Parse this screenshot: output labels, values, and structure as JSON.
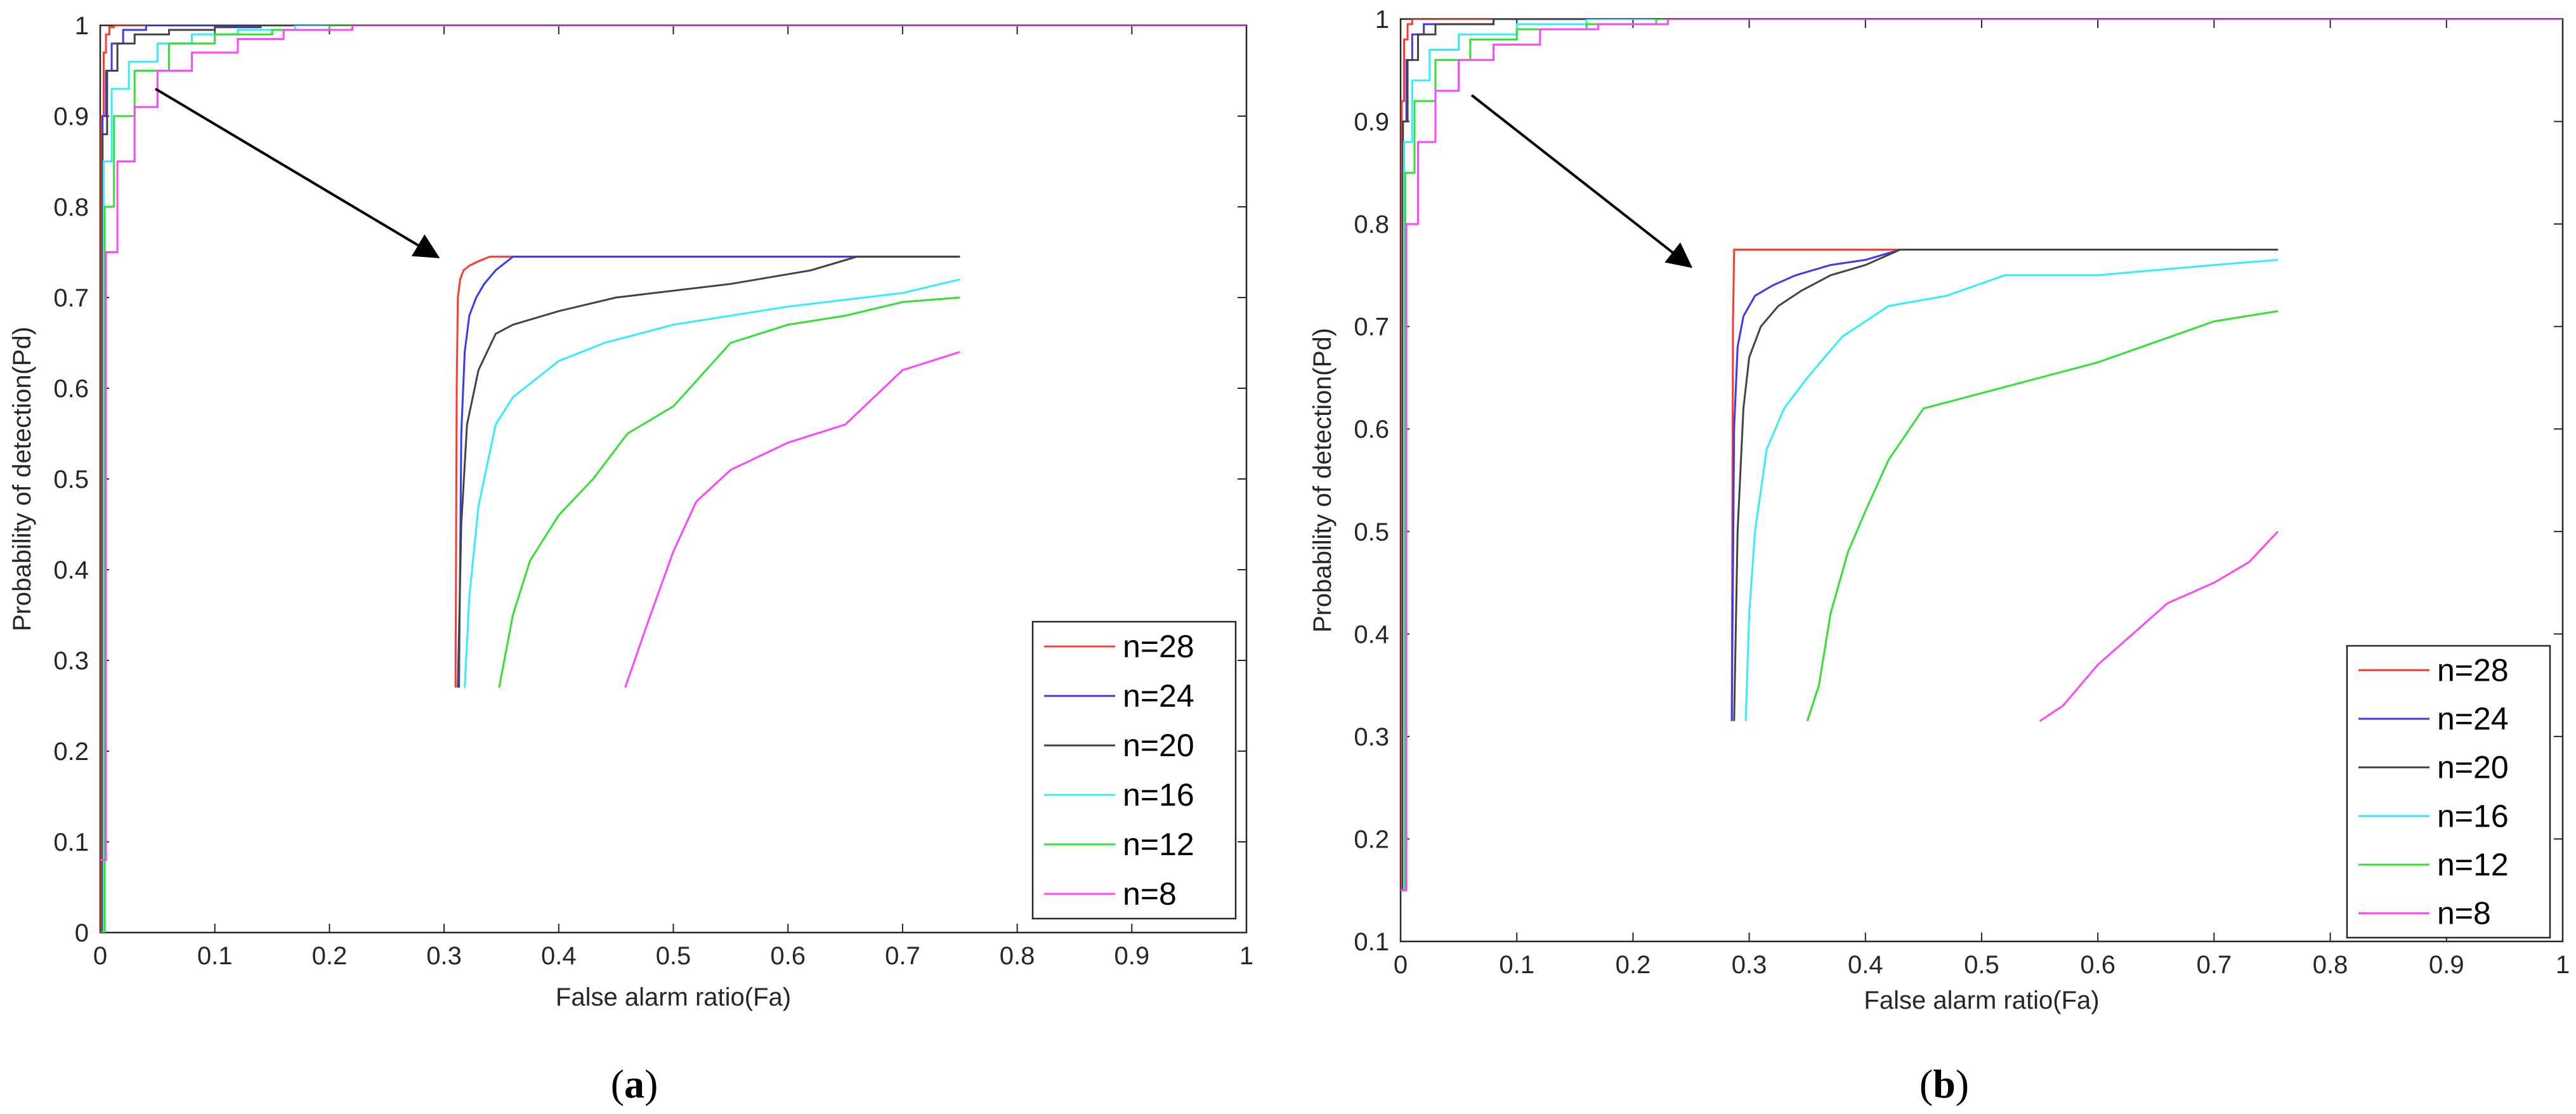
{
  "figure": {
    "colors": {
      "n=28": "#ff3b30",
      "n=24": "#3a3af0",
      "n=20": "#444444",
      "n=16": "#33ecff",
      "n=12": "#33e033",
      "n=8": "#ff44ff"
    }
  },
  "chart_data": [
    {
      "type": "line",
      "panel_label": "a",
      "xlabel": "False alarm ratio(Fa)",
      "ylabel": "Probability of detection(Pd)",
      "xlim": [
        0,
        1
      ],
      "ylim": [
        0,
        1
      ],
      "xticks": [
        "0",
        "0.1",
        "0.2",
        "0.3",
        "0.4",
        "0.5",
        "0.6",
        "0.7",
        "0.8",
        "0.9",
        "1"
      ],
      "yticks": [
        "0",
        "0.1",
        "0.2",
        "0.3",
        "0.4",
        "0.5",
        "0.6",
        "0.7",
        "0.8",
        "0.9",
        "1"
      ],
      "legend_position": "bottom-right",
      "series": [
        {
          "name": "n=28",
          "x": [
            0,
            0.001,
            0.003,
            0.005,
            0.008,
            0.012,
            1
          ],
          "y": [
            0,
            0.9,
            0.97,
            0.99,
            0.998,
            1,
            1
          ]
        },
        {
          "name": "n=24",
          "x": [
            0,
            0.002,
            0.005,
            0.01,
            0.02,
            0.04,
            1
          ],
          "y": [
            0,
            0.9,
            0.95,
            0.98,
            0.995,
            1,
            1
          ]
        },
        {
          "name": "n=20",
          "x": [
            0,
            0.002,
            0.006,
            0.015,
            0.03,
            0.06,
            0.1,
            0.14,
            1
          ],
          "y": [
            0,
            0.88,
            0.95,
            0.98,
            0.99,
            0.995,
            0.998,
            1,
            1
          ]
        },
        {
          "name": "n=16",
          "x": [
            0,
            0.003,
            0.01,
            0.025,
            0.05,
            0.08,
            0.12,
            0.17,
            1
          ],
          "y": [
            0,
            0.85,
            0.93,
            0.96,
            0.98,
            0.99,
            0.995,
            1,
            1
          ]
        },
        {
          "name": "n=12",
          "x": [
            0,
            0.004,
            0.012,
            0.03,
            0.06,
            0.1,
            0.15,
            0.2,
            1
          ],
          "y": [
            0,
            0.8,
            0.9,
            0.95,
            0.98,
            0.99,
            0.995,
            1,
            1
          ]
        },
        {
          "name": "n=8",
          "x": [
            0,
            0.005,
            0.015,
            0.03,
            0.05,
            0.08,
            0.12,
            0.16,
            0.22,
            1
          ],
          "y": [
            0.08,
            0.75,
            0.85,
            0.91,
            0.95,
            0.97,
            0.985,
            0.995,
            1,
            1
          ]
        }
      ],
      "inset": {
        "description": "zoomed view of the top-left corner",
        "frame": {
          "x": [
            0.3,
            0.75
          ],
          "y": [
            0.27,
            0.745
          ]
        },
        "series": [
          {
            "name": "n=28",
            "x": [
              0.31,
              0.311,
              0.312,
              0.314,
              0.317,
              0.322,
              0.33,
              0.34,
              0.75
            ],
            "y": [
              0.27,
              0.6,
              0.7,
              0.72,
              0.73,
              0.735,
              0.74,
              0.745,
              0.745
            ]
          },
          {
            "name": "n=24",
            "x": [
              0.313,
              0.315,
              0.318,
              0.322,
              0.328,
              0.335,
              0.345,
              0.36,
              0.75
            ],
            "y": [
              0.27,
              0.55,
              0.64,
              0.68,
              0.7,
              0.715,
              0.73,
              0.745,
              0.745
            ]
          },
          {
            "name": "n=20",
            "x": [
              0.312,
              0.315,
              0.32,
              0.33,
              0.345,
              0.36,
              0.4,
              0.45,
              0.55,
              0.62,
              0.66,
              0.75
            ],
            "y": [
              0.27,
              0.45,
              0.56,
              0.62,
              0.66,
              0.67,
              0.685,
              0.7,
              0.715,
              0.73,
              0.745,
              0.745
            ]
          },
          {
            "name": "n=16",
            "x": [
              0.318,
              0.322,
              0.33,
              0.345,
              0.36,
              0.38,
              0.4,
              0.44,
              0.5,
              0.6,
              0.7,
              0.75
            ],
            "y": [
              0.27,
              0.37,
              0.47,
              0.56,
              0.59,
              0.61,
              0.63,
              0.65,
              0.67,
              0.69,
              0.705,
              0.72
            ]
          },
          {
            "name": "n=12",
            "x": [
              0.348,
              0.36,
              0.375,
              0.4,
              0.43,
              0.46,
              0.5,
              0.55,
              0.6,
              0.65,
              0.7,
              0.75
            ],
            "y": [
              0.27,
              0.35,
              0.41,
              0.46,
              0.5,
              0.55,
              0.58,
              0.65,
              0.67,
              0.68,
              0.695,
              0.7
            ]
          },
          {
            "name": "n=8",
            "x": [
              0.458,
              0.48,
              0.5,
              0.52,
              0.55,
              0.6,
              0.65,
              0.7,
              0.75
            ],
            "y": [
              0.27,
              0.35,
              0.42,
              0.475,
              0.51,
              0.54,
              0.56,
              0.62,
              0.64
            ]
          }
        ]
      }
    },
    {
      "type": "line",
      "panel_label": "b",
      "xlabel": "False alarm ratio(Fa)",
      "ylabel": "Probability of detection(Pd)",
      "xlim": [
        0,
        1
      ],
      "ylim": [
        0.1,
        1
      ],
      "xticks": [
        "0",
        "0.1",
        "0.2",
        "0.3",
        "0.4",
        "0.5",
        "0.6",
        "0.7",
        "0.8",
        "0.9",
        "1"
      ],
      "yticks": [
        "0.1",
        "0.2",
        "0.3",
        "0.4",
        "0.5",
        "0.6",
        "0.7",
        "0.8",
        "0.9",
        "1"
      ],
      "legend_position": "bottom-right",
      "series": [
        {
          "name": "n=28",
          "x": [
            0,
            0.001,
            0.003,
            0.006,
            0.01,
            1
          ],
          "y": [
            0.15,
            0.92,
            0.98,
            0.995,
            1,
            1
          ]
        },
        {
          "name": "n=24",
          "x": [
            0,
            0.002,
            0.005,
            0.01,
            0.02,
            0.08,
            1
          ],
          "y": [
            0.15,
            0.9,
            0.96,
            0.985,
            0.995,
            1,
            1
          ]
        },
        {
          "name": "n=20",
          "x": [
            0,
            0.002,
            0.006,
            0.015,
            0.03,
            0.08,
            1
          ],
          "y": [
            0.15,
            0.9,
            0.96,
            0.985,
            0.995,
            1,
            1
          ]
        },
        {
          "name": "n=16",
          "x": [
            0,
            0.003,
            0.01,
            0.025,
            0.05,
            0.1,
            0.16,
            1
          ],
          "y": [
            0.15,
            0.88,
            0.94,
            0.97,
            0.985,
            0.995,
            1,
            1
          ]
        },
        {
          "name": "n=12",
          "x": [
            0,
            0.004,
            0.012,
            0.03,
            0.06,
            0.1,
            0.16,
            0.22,
            1
          ],
          "y": [
            0.15,
            0.85,
            0.92,
            0.96,
            0.98,
            0.99,
            0.995,
            1,
            1
          ]
        },
        {
          "name": "n=8",
          "x": [
            0,
            0.005,
            0.015,
            0.03,
            0.05,
            0.08,
            0.12,
            0.17,
            0.23,
            1
          ],
          "y": [
            0.15,
            0.8,
            0.88,
            0.93,
            0.96,
            0.975,
            0.99,
            0.995,
            1,
            1
          ]
        }
      ],
      "inset": {
        "description": "zoomed view of the top-left corner",
        "frame": {
          "x": [
            0.28,
            0.755
          ],
          "y": [
            0.315,
            0.775
          ]
        },
        "series": [
          {
            "name": "n=28",
            "x": [
              0.285,
              0.286,
              0.287,
              0.29,
              0.3,
              0.43,
              0.755
            ],
            "y": [
              0.315,
              0.7,
              0.775,
              0.775,
              0.775,
              0.775,
              0.775
            ]
          },
          {
            "name": "n=24",
            "x": [
              0.285,
              0.287,
              0.29,
              0.295,
              0.305,
              0.32,
              0.34,
              0.37,
              0.4,
              0.43,
              0.755
            ],
            "y": [
              0.315,
              0.6,
              0.68,
              0.71,
              0.73,
              0.74,
              0.75,
              0.76,
              0.765,
              0.775,
              0.775
            ]
          },
          {
            "name": "n=20",
            "x": [
              0.287,
              0.29,
              0.295,
              0.3,
              0.31,
              0.325,
              0.345,
              0.37,
              0.4,
              0.43,
              0.755
            ],
            "y": [
              0.315,
              0.5,
              0.62,
              0.67,
              0.7,
              0.72,
              0.735,
              0.75,
              0.76,
              0.775,
              0.775
            ]
          },
          {
            "name": "n=16",
            "x": [
              0.297,
              0.3,
              0.305,
              0.315,
              0.33,
              0.35,
              0.38,
              0.42,
              0.47,
              0.52,
              0.6,
              0.7,
              0.755
            ],
            "y": [
              0.315,
              0.42,
              0.5,
              0.58,
              0.62,
              0.65,
              0.69,
              0.72,
              0.73,
              0.75,
              0.75,
              0.76,
              0.765
            ]
          },
          {
            "name": "n=12",
            "x": [
              0.35,
              0.36,
              0.37,
              0.385,
              0.4,
              0.42,
              0.45,
              0.5,
              0.55,
              0.6,
              0.65,
              0.7,
              0.755
            ],
            "y": [
              0.315,
              0.35,
              0.42,
              0.48,
              0.52,
              0.57,
              0.62,
              0.635,
              0.65,
              0.665,
              0.685,
              0.705,
              0.715
            ]
          },
          {
            "name": "n=8",
            "x": [
              0.55,
              0.57,
              0.6,
              0.63,
              0.66,
              0.7,
              0.73,
              0.755
            ],
            "y": [
              0.315,
              0.33,
              0.37,
              0.4,
              0.43,
              0.45,
              0.47,
              0.5
            ]
          }
        ]
      }
    }
  ]
}
